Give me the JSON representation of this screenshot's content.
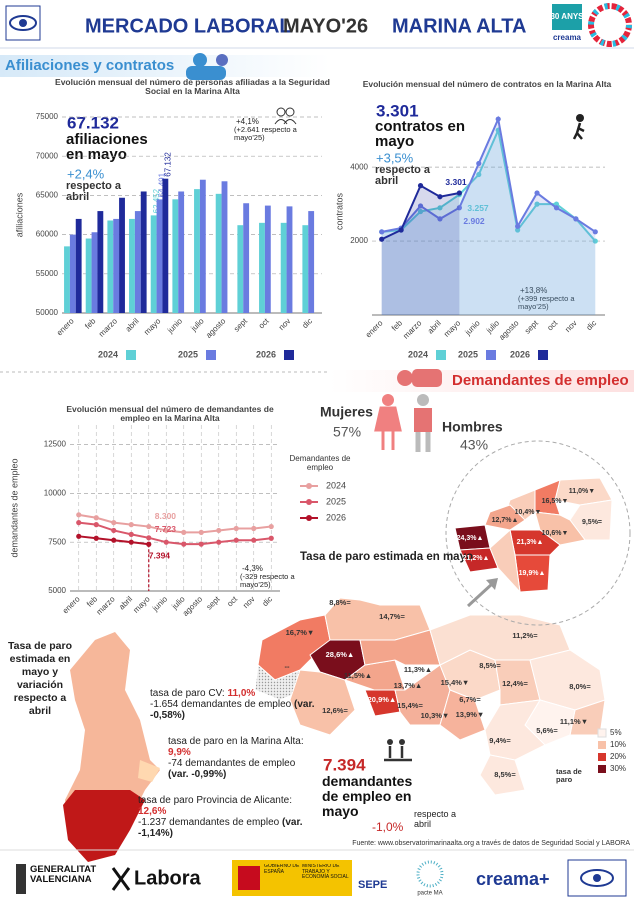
{
  "header": {
    "title": "MERCADO LABORAL",
    "month": "MAYO'26",
    "region": "MARINA ALTA",
    "badge": "30 ANYS",
    "badge_brand": "creama"
  },
  "sections": [
    "Afiliaciones y contratos",
    "Demandantes de empleo"
  ],
  "chart_data": [
    {
      "type": "bar",
      "title": "Evolución mensual del número de personas afiliadas a la Seguridad Social en la Marina Alta",
      "y_label": "afiliaciones",
      "categories": [
        "enero",
        "feb",
        "marzo",
        "abril",
        "mayo",
        "junio",
        "julio",
        "agosto",
        "sept",
        "oct",
        "nov",
        "dic"
      ],
      "series": [
        {
          "name": "2024",
          "color": "#5fd0d6",
          "values": [
            58500,
            59500,
            61800,
            62000,
            62452,
            64500,
            65800,
            65200,
            61200,
            61500,
            61500,
            61200
          ],
          "value_labels": [
            null,
            null,
            null,
            null,
            "62.452",
            null,
            null,
            null,
            null,
            null,
            null,
            null
          ]
        },
        {
          "name": "2025",
          "color": "#6a7be0",
          "values": [
            60000,
            60300,
            62000,
            63000,
            64491,
            65500,
            67000,
            66800,
            64000,
            63700,
            63600,
            63000
          ],
          "value_labels": [
            null,
            null,
            null,
            null,
            "64.491",
            null,
            null,
            null,
            null,
            null,
            null,
            null
          ]
        },
        {
          "name": "2026",
          "color": "#1f2a9a",
          "values": [
            62000,
            63000,
            64700,
            65500,
            67132,
            null,
            null,
            null,
            null,
            null,
            null,
            null
          ],
          "value_labels": [
            null,
            null,
            null,
            null,
            "67.132",
            null,
            null,
            null,
            null,
            null,
            null,
            null
          ]
        }
      ],
      "ylim": [
        50000,
        75000
      ],
      "yticks": [
        50000,
        55000,
        60000,
        65000,
        70000,
        75000
      ],
      "grid": true,
      "annotations": [
        "67.132",
        "afiliaciones en mayo",
        "+2,4%",
        "respecto a abril",
        "+4,1%",
        "(+2.641 respecto a mayo'25)"
      ]
    },
    {
      "type": "line",
      "title": "Evolución mensual del número de contratos en la Marina Alta",
      "y_label": "contratos",
      "categories": [
        "enero",
        "feb",
        "marzo",
        "abril",
        "mayo",
        "junio",
        "julio",
        "agosto",
        "sept",
        "oct",
        "nov",
        "dic"
      ],
      "series": [
        {
          "name": "2024",
          "color": "#5fd0d6",
          "values": [
            2250,
            2300,
            2800,
            2900,
            3257,
            3800,
            5000,
            2300,
            3000,
            3000,
            2600,
            2000
          ],
          "value_labels": [
            null,
            null,
            null,
            null,
            "3.257",
            null,
            null,
            null,
            null,
            null,
            null,
            null
          ]
        },
        {
          "name": "2025",
          "color": "#6a7be0",
          "values": [
            2250,
            2350,
            2950,
            2600,
            2902,
            4100,
            5300,
            2400,
            3300,
            2900,
            2600,
            2250
          ],
          "value_labels": [
            null,
            null,
            null,
            null,
            "2.902",
            null,
            null,
            null,
            null,
            null,
            null,
            null
          ]
        },
        {
          "name": "2026",
          "color": "#1f2a9a",
          "values": [
            2050,
            2300,
            3500,
            3200,
            3301,
            null,
            null,
            null,
            null,
            null,
            null,
            null
          ],
          "value_labels": [
            null,
            null,
            null,
            null,
            "3.301",
            null,
            null,
            null,
            null,
            null,
            null,
            null
          ]
        }
      ],
      "ylim": [
        0,
        5600
      ],
      "yticks": [
        2000,
        4000
      ],
      "grid": true,
      "annotations": [
        "3.301",
        "contratos en mayo",
        "+3,5%",
        "respecto a abril",
        "+13,8%",
        "(+399 respecto a mayo'25)"
      ]
    },
    {
      "type": "line",
      "title": "Evolución mensual del número de demandantes de empleo en la Marina Alta",
      "y_label": "demandantes de empleo",
      "legend_title": "Demandantes de empleo",
      "categories": [
        "enero",
        "feb",
        "marzo",
        "abril",
        "mayo",
        "junio",
        "julio",
        "agosto",
        "sept",
        "oct",
        "nov",
        "dic"
      ],
      "series": [
        {
          "name": "2024",
          "color": "#e8a0a0",
          "values": [
            8900,
            8750,
            8500,
            8400,
            8300,
            8100,
            8000,
            8000,
            8100,
            8200,
            8200,
            8300
          ],
          "value_labels": [
            null,
            null,
            null,
            null,
            "8.300",
            null,
            null,
            null,
            null,
            null,
            null,
            null
          ]
        },
        {
          "name": "2025",
          "color": "#d9576a",
          "values": [
            8500,
            8400,
            8100,
            7900,
            7723,
            7500,
            7400,
            7400,
            7500,
            7600,
            7600,
            7700
          ],
          "value_labels": [
            null,
            null,
            null,
            null,
            "7.723",
            null,
            null,
            null,
            null,
            null,
            null,
            null
          ]
        },
        {
          "name": "2026",
          "color": "#b3122a",
          "values": [
            7800,
            7700,
            7600,
            7500,
            7394,
            null,
            null,
            null,
            null,
            null,
            null,
            null
          ],
          "value_labels": [
            null,
            null,
            null,
            null,
            "7.394",
            null,
            null,
            null,
            null,
            null,
            null,
            null
          ]
        }
      ],
      "ylim": [
        5000,
        13500
      ],
      "yticks": [
        5000,
        7500,
        10000,
        12500
      ],
      "grid": true,
      "annotations": [
        "-4,3%",
        "(-329 respecto a mayo'25)"
      ]
    }
  ],
  "gender": {
    "women": "Mujeres",
    "women_pct": "57%",
    "men": "Hombres",
    "men_pct": "43%"
  },
  "map": {
    "title": "Tasa de paro estimada en mayo",
    "labels": [
      "8,8%=",
      "14,7%=",
      "16,7%▼",
      "28,6%▲",
      "11,3%▲",
      "11,5%▲",
      "13,7%▲",
      "20,9%▲",
      "15,4%=",
      "15,4%▼",
      "12,6%=",
      "10,3%▼",
      "13,9%▼",
      "6,7%=",
      "12,4%=",
      "8,5%=",
      "11,2%=",
      "8,0%=",
      "11,1%▼",
      "5,6%=",
      "9,4%=",
      "8,5%=",
      "--"
    ],
    "zoom_labels": [
      "11,0%▼",
      "16,5%▼",
      "10,4%▼",
      "9,5%=",
      "12,7%▲",
      "10,6%▼",
      "24,3%▲",
      "21,3%▲",
      "21,2%▲",
      "19,9%▲"
    ],
    "legend_title": "tasa de paro",
    "legend": [
      "5%",
      "10%",
      "20%",
      "30%"
    ]
  },
  "left_map": {
    "title": "Tasa de paro estimada en mayo y variación respecto a abril",
    "cv": {
      "label": "tasa de paro CV:",
      "rate": "11,0%",
      "change": "-1.654 demandantes de empleo",
      "var": "(var. -0,58%)"
    },
    "ma": {
      "label": "tasa de paro en la Marina Alta:",
      "rate": "9,9%",
      "change": "-74 demandantes de empleo",
      "var": "(var. -0,99%)"
    },
    "prov": {
      "label": "tasa de paro Provincia de Alicante:",
      "rate": "12,6%",
      "change": "-1.237 demandantes de empleo",
      "var": "(var. -1,14%)"
    }
  },
  "summary": {
    "value": "7.394",
    "label": "demandantes de empleo en mayo",
    "change": "-1,0%",
    "change_label": "respecto a abril"
  },
  "source": "Fuente: www.observatorimarinaalta.org a través de datos de Seguridad Social y LABORA",
  "footer": {
    "gva": "GENERALITAT VALENCIANA",
    "labora": "Labora",
    "gob": "GOBIERNO DE ESPAÑA",
    "ministry": "MINISTERIO DE TRABAJO Y ECONOMÍA SOCIAL",
    "sepe": "SEPE",
    "pacte": "pacte MA",
    "creama": "creama+"
  }
}
